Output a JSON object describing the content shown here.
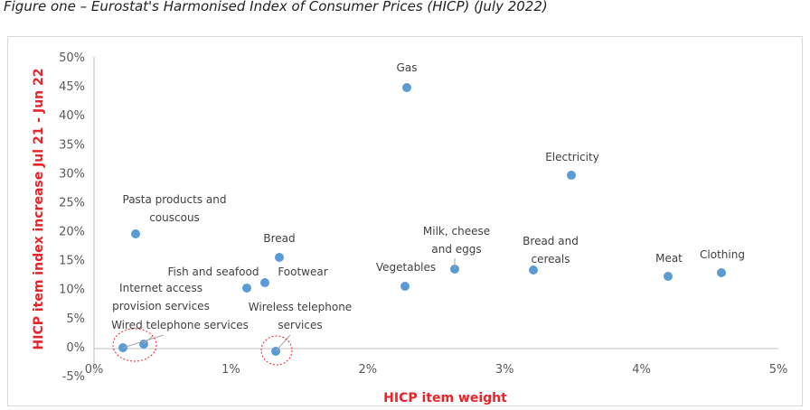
{
  "figure_caption": "Figure one – Eurostat's Harmonised Index of Consumer Prices (HICP) (July 2022)",
  "chart_data": {
    "type": "scatter",
    "title": "",
    "xlabel": "HICP item weight",
    "ylabel": "HICP item index increase Jul 21 - Jun 22",
    "xlim": [
      0,
      5
    ],
    "ylim": [
      -5,
      50
    ],
    "x_ticks": [
      "0%",
      "1%",
      "2%",
      "3%",
      "4%",
      "5%"
    ],
    "y_ticks": [
      "-5%",
      "0%",
      "5%",
      "10%",
      "15%",
      "20%",
      "25%",
      "30%",
      "35%",
      "40%",
      "45%",
      "50%"
    ],
    "grid": false,
    "legend": "none",
    "colors": {
      "point": "#5b9bd5",
      "axis_title": "#e8232a",
      "highlight_circle": "#e8232a",
      "leader_line": "#a6a6a6"
    },
    "points": [
      {
        "label": "Gas",
        "x": 2.05,
        "y": 44.6
      },
      {
        "label": "Electricity",
        "x": 3.25,
        "y": 29.6
      },
      {
        "label": "Pasta products and couscous",
        "label_lines": [
          "Pasta products and",
          "couscous"
        ],
        "x": 0.25,
        "y": 19.7
      },
      {
        "label": "Bread",
        "x": 1.37,
        "y": 15.6
      },
      {
        "label": "Footwear",
        "x": 1.2,
        "y": 11.3
      },
      {
        "label": "Fish and seafood",
        "x": 0.94,
        "y": 10.4
      },
      {
        "label": "Vegetables",
        "x": 2.03,
        "y": 10.7
      },
      {
        "label": "Milk, cheese and eggs",
        "label_lines": [
          "Milk, cheese",
          "and eggs"
        ],
        "x": 2.69,
        "y": 13.6
      },
      {
        "label": "Bread and cereals",
        "label_lines": [
          "Bread and",
          "cereals"
        ],
        "x": 2.98,
        "y": 13.4
      },
      {
        "label": "Meat",
        "x": 3.78,
        "y": 12.4
      },
      {
        "label": "Clothing",
        "x": 4.14,
        "y": 13.0
      },
      {
        "label": "Internet access provision services",
        "label_lines": [
          "Internet access",
          "provision services"
        ],
        "x": 0.31,
        "y": 0.9
      },
      {
        "label": "Wired telephone services",
        "x": 0.17,
        "y": 0.3
      },
      {
        "label": "Wireless telephone services",
        "label_lines": [
          "Wireless telephone",
          "services"
        ],
        "x": 1.33,
        "y": -0.5
      }
    ]
  }
}
